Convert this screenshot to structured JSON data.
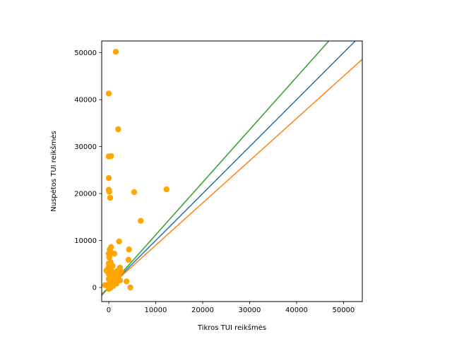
{
  "chart_data": {
    "type": "scatter",
    "title": "",
    "xlabel": "Tikros TUI reikšmės",
    "ylabel": "Nuspėtos TUI reikšmės",
    "xlim": [
      -1500,
      54000
    ],
    "ylim": [
      -3000,
      52500
    ],
    "xticks": [
      0,
      10000,
      20000,
      30000,
      40000,
      50000
    ],
    "yticks": [
      0,
      10000,
      20000,
      30000,
      40000,
      50000
    ],
    "grid": false,
    "legend": "none",
    "colors": {
      "points": "#FFA500",
      "identity_line": "#1F77B4",
      "lower_line": "#FF7F0E",
      "upper_line": "#2CA02C"
    },
    "lines": [
      {
        "slope": 1.0,
        "intercept": 0,
        "color": "#1F77B4"
      },
      {
        "slope": 0.9,
        "intercept": 0,
        "color": "#FF7F0E"
      },
      {
        "slope": 1.12,
        "intercept": 0,
        "color": "#2CA02C"
      }
    ],
    "points": [
      {
        "x": 1500,
        "y": 50200
      },
      {
        "x": 0,
        "y": 41300
      },
      {
        "x": 2000,
        "y": 33700
      },
      {
        "x": 0,
        "y": 27900
      },
      {
        "x": 500,
        "y": 28000
      },
      {
        "x": 0,
        "y": 23300
      },
      {
        "x": 0,
        "y": 20800
      },
      {
        "x": 100,
        "y": 20400
      },
      {
        "x": 300,
        "y": 19100
      },
      {
        "x": 5400,
        "y": 20300
      },
      {
        "x": 12300,
        "y": 20900
      },
      {
        "x": 6800,
        "y": 14200
      },
      {
        "x": 2200,
        "y": 9800
      },
      {
        "x": 4300,
        "y": 8100
      },
      {
        "x": 200,
        "y": 8100
      },
      {
        "x": 500,
        "y": 8600
      },
      {
        "x": 0,
        "y": 7200
      },
      {
        "x": 1200,
        "y": 7200
      },
      {
        "x": 300,
        "y": 7000
      },
      {
        "x": 800,
        "y": 7300
      },
      {
        "x": 100,
        "y": 6400
      },
      {
        "x": 0,
        "y": 5100
      },
      {
        "x": 400,
        "y": 5400
      },
      {
        "x": 4200,
        "y": 5900
      },
      {
        "x": 0,
        "y": 4300
      },
      {
        "x": 200,
        "y": 4800
      },
      {
        "x": 2400,
        "y": 4200
      },
      {
        "x": 2600,
        "y": 3400
      },
      {
        "x": 1800,
        "y": 3500
      },
      {
        "x": 1100,
        "y": 3100
      },
      {
        "x": -500,
        "y": 3600
      },
      {
        "x": 500,
        "y": 3600
      },
      {
        "x": 0,
        "y": 2900
      },
      {
        "x": 700,
        "y": 2600
      },
      {
        "x": 1500,
        "y": 2100
      },
      {
        "x": 300,
        "y": 2200
      },
      {
        "x": 0,
        "y": 1800
      },
      {
        "x": 1000,
        "y": 1700
      },
      {
        "x": 2400,
        "y": 1500
      },
      {
        "x": 3800,
        "y": 1300
      },
      {
        "x": 300,
        "y": 1200
      },
      {
        "x": 600,
        "y": 900
      },
      {
        "x": 0,
        "y": 700
      },
      {
        "x": -800,
        "y": 500
      },
      {
        "x": 200,
        "y": 400
      },
      {
        "x": 900,
        "y": 300
      },
      {
        "x": 0,
        "y": 100
      },
      {
        "x": 400,
        "y": 0
      },
      {
        "x": 100,
        "y": -200
      },
      {
        "x": 0,
        "y": -300
      },
      {
        "x": 4600,
        "y": 0
      },
      {
        "x": 1600,
        "y": 800
      },
      {
        "x": 2100,
        "y": 2700
      },
      {
        "x": 800,
        "y": 4600
      },
      {
        "x": 1300,
        "y": 1300
      },
      {
        "x": 500,
        "y": 1500
      }
    ]
  }
}
